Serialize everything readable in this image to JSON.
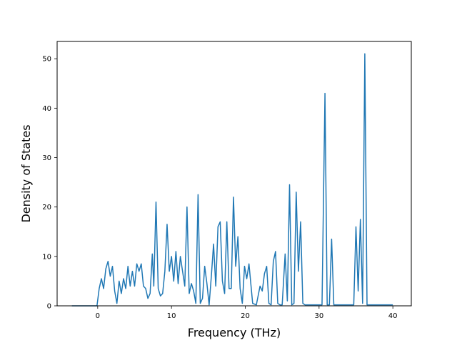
{
  "chart_data": {
    "type": "line",
    "title": "",
    "xlabel": "Frequency (THz)",
    "ylabel": "Density of States",
    "xlim": [
      -5.5,
      42.5
    ],
    "ylim": [
      0,
      53.5
    ],
    "xticks": [
      0,
      10,
      20,
      30,
      40
    ],
    "yticks": [
      0,
      10,
      20,
      30,
      40,
      50
    ],
    "grid": false,
    "legend": "none",
    "colors": {
      "line": "#1f77b4",
      "axes": "#000000",
      "background": "#ffffff"
    },
    "series": [
      {
        "x": [
          -3.5,
          -0.1,
          0.2,
          0.5,
          0.8,
          1.1,
          1.4,
          1.7,
          2.0,
          2.3,
          2.6,
          2.9,
          3.2,
          3.5,
          3.8,
          4.1,
          4.4,
          4.7,
          5.0,
          5.3,
          5.6,
          5.9,
          6.2,
          6.5,
          6.8,
          7.1,
          7.4,
          7.6,
          7.9,
          8.2,
          8.5,
          8.8,
          9.1,
          9.4,
          9.7,
          10.0,
          10.3,
          10.6,
          10.9,
          11.2,
          11.5,
          11.8,
          12.1,
          12.4,
          12.7,
          13.0,
          13.3,
          13.6,
          13.9,
          14.2,
          14.5,
          14.8,
          15.1,
          15.4,
          15.7,
          16.0,
          16.3,
          16.6,
          16.9,
          17.2,
          17.5,
          17.8,
          18.1,
          18.4,
          18.7,
          19.0,
          19.3,
          19.6,
          19.9,
          20.2,
          20.5,
          21.0,
          21.5,
          22.0,
          22.3,
          22.6,
          22.9,
          23.2,
          23.5,
          23.8,
          24.1,
          24.4,
          24.7,
          25.0,
          25.4,
          25.7,
          26.0,
          26.3,
          26.6,
          26.9,
          27.2,
          27.5,
          27.8,
          28.1,
          28.4,
          28.8,
          29.3,
          29.9,
          30.4,
          30.8,
          31.1,
          31.4,
          31.7,
          32.0,
          32.4,
          33.0,
          33.6,
          34.3,
          34.7,
          35.0,
          35.3,
          35.6,
          35.9,
          36.2,
          36.5,
          36.8,
          37.2,
          38.0,
          40.0
        ],
        "values": [
          0,
          0,
          3.5,
          5.5,
          3.5,
          7.5,
          9.0,
          6.0,
          8.0,
          3.0,
          0.5,
          5.0,
          2.5,
          5.5,
          3.5,
          8.0,
          4.0,
          7.0,
          4.0,
          8.5,
          7.0,
          8.5,
          4.0,
          3.5,
          1.5,
          2.5,
          10.5,
          4.0,
          21.0,
          3.5,
          2.0,
          2.5,
          7.0,
          16.5,
          7.0,
          10.0,
          5.0,
          11.0,
          4.5,
          10.0,
          7.0,
          4.0,
          20.0,
          2.5,
          4.5,
          3.0,
          0.5,
          22.5,
          0.5,
          1.5,
          8.0,
          4.5,
          0.2,
          6.0,
          12.5,
          4.0,
          16.0,
          17.0,
          5.0,
          2.5,
          17.0,
          3.5,
          3.5,
          22.0,
          8.0,
          14.0,
          3.5,
          0.5,
          8.0,
          5.5,
          8.5,
          0.5,
          0.2,
          4.0,
          3.0,
          6.5,
          8.0,
          0.5,
          0.2,
          9.0,
          11.0,
          0.5,
          0.2,
          0.2,
          10.5,
          1.0,
          24.5,
          0.2,
          0.5,
          23.0,
          7.0,
          17.0,
          0.5,
          0.2,
          0.2,
          0.2,
          0.2,
          0.2,
          0.2,
          43.0,
          0.2,
          0.2,
          13.5,
          0.2,
          0.2,
          0.2,
          0.2,
          0.2,
          0.2,
          16.0,
          3.0,
          17.5,
          0.5,
          51.0,
          0.2,
          0.2,
          0.2,
          0.2,
          0.2
        ]
      }
    ]
  }
}
